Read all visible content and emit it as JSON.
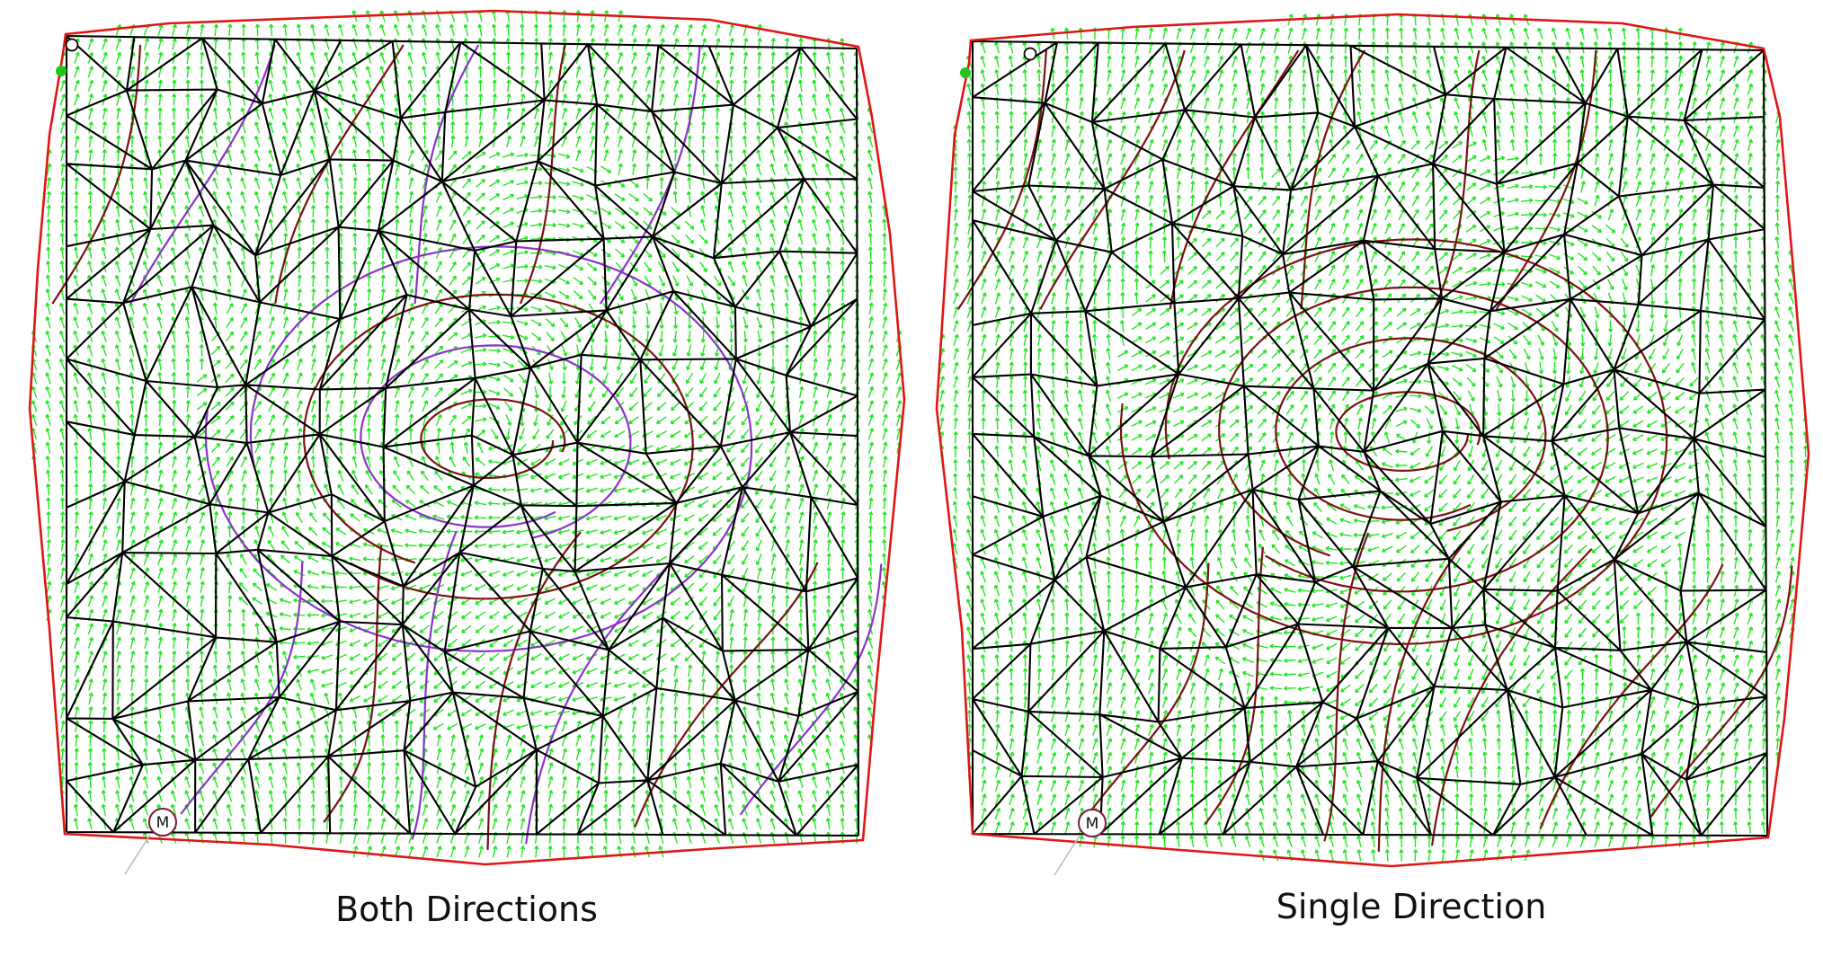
{
  "panels": [
    {
      "caption": "Both Directions",
      "marker_label": "M",
      "streamline_colors": [
        "#7a1212",
        "#8b34c8"
      ]
    },
    {
      "caption": "Single Direction",
      "marker_label": "M",
      "streamline_colors": [
        "#7a1212"
      ]
    }
  ],
  "colors": {
    "vector_field": "#22e622",
    "mesh_edges": "#000000",
    "boundary": "#e01515",
    "marker_ring": "#7a1a3a",
    "start_dot": "#1ec81e"
  }
}
